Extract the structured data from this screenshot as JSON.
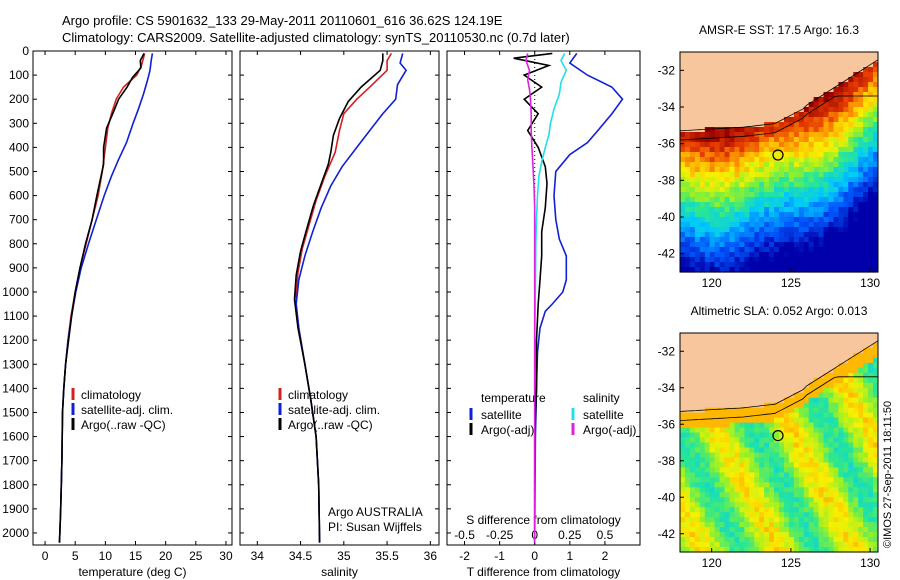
{
  "header": {
    "line1": "Argo profile: CS 5901632_133 29-May-2011 20110601_616 36.62S 124.19E",
    "line2": "Climatology: CARS2009. Satellite-adjusted climatology: synTS_20110530.nc (0.7d later)"
  },
  "colors": {
    "climatology": "#d42020",
    "satellite": "#1020d8",
    "argo": "#000000",
    "sal_satellite": "#20e0e8",
    "sal_argo": "#e020e0",
    "land": "#f8c69c"
  },
  "watermark": "©IMOS 27-Sep-2011 18:11:50",
  "chart_data": [
    {
      "type": "line",
      "name": "temperature",
      "xlabel": "temperature (deg C)",
      "ylabel": "",
      "xlim": [
        -2,
        31
      ],
      "ylim": [
        0,
        2050
      ],
      "xticks": [
        0,
        5,
        10,
        15,
        20,
        25,
        30
      ],
      "yticks": [
        0,
        100,
        200,
        300,
        400,
        500,
        600,
        700,
        800,
        900,
        1000,
        1100,
        1200,
        1300,
        1400,
        1500,
        1600,
        1700,
        1800,
        1900,
        2000
      ],
      "legend": [
        "climatology",
        "satellite-adj. clim.",
        "Argo(..raw -QC)"
      ],
      "series": [
        {
          "name": "climatology",
          "color": "#d42020",
          "points": [
            [
              16.5,
              10
            ],
            [
              16.3,
              30
            ],
            [
              16.0,
              60
            ],
            [
              15.2,
              100
            ],
            [
              13.0,
              150
            ],
            [
              11.8,
              200
            ],
            [
              11.0,
              260
            ],
            [
              10.4,
              320
            ],
            [
              10.0,
              400
            ],
            [
              9.5,
              500
            ],
            [
              8.8,
              600
            ],
            [
              7.8,
              700
            ],
            [
              6.8,
              800
            ],
            [
              5.8,
              900
            ],
            [
              5.0,
              1000
            ],
            [
              4.3,
              1100
            ],
            [
              3.8,
              1200
            ],
            [
              3.4,
              1300
            ],
            [
              3.1,
              1400
            ],
            [
              2.9,
              1500
            ],
            [
              2.8,
              1700
            ],
            [
              2.6,
              1900
            ],
            [
              2.4,
              2040
            ]
          ]
        },
        {
          "name": "satellite-adj. clim.",
          "color": "#1020d8",
          "points": [
            [
              17.8,
              10
            ],
            [
              17.6,
              40
            ],
            [
              17.4,
              80
            ],
            [
              17.0,
              120
            ],
            [
              16.3,
              180
            ],
            [
              15.5,
              240
            ],
            [
              14.6,
              300
            ],
            [
              13.5,
              380
            ],
            [
              12.2,
              450
            ],
            [
              11.0,
              520
            ],
            [
              9.8,
              600
            ],
            [
              8.5,
              700
            ],
            [
              7.2,
              800
            ],
            [
              6.0,
              900
            ],
            [
              5.1,
              1000
            ],
            [
              4.4,
              1100
            ],
            [
              3.8,
              1200
            ],
            [
              3.4,
              1300
            ],
            [
              3.1,
              1400
            ],
            [
              2.9,
              1500
            ],
            [
              2.8,
              1700
            ],
            [
              2.6,
              1900
            ],
            [
              2.4,
              2040
            ]
          ]
        },
        {
          "name": "Argo(..raw -QC)",
          "color": "#000000",
          "points": [
            [
              16.4,
              10
            ],
            [
              15.8,
              40
            ],
            [
              15.9,
              70
            ],
            [
              14.5,
              110
            ],
            [
              13.6,
              150
            ],
            [
              12.2,
              200
            ],
            [
              11.4,
              250
            ],
            [
              10.2,
              320
            ],
            [
              9.7,
              400
            ],
            [
              9.7,
              470
            ],
            [
              9.2,
              530
            ],
            [
              8.6,
              600
            ],
            [
              7.8,
              700
            ],
            [
              6.7,
              800
            ],
            [
              5.8,
              900
            ],
            [
              5.0,
              1000
            ],
            [
              4.4,
              1100
            ],
            [
              3.9,
              1200
            ],
            [
              3.4,
              1300
            ],
            [
              3.1,
              1400
            ],
            [
              2.9,
              1500
            ],
            [
              2.8,
              1700
            ],
            [
              2.6,
              1900
            ],
            [
              2.4,
              2040
            ]
          ]
        }
      ]
    },
    {
      "type": "line",
      "name": "salinity",
      "xlabel": "salinity",
      "ylabel": "",
      "xlim": [
        33.8,
        36.1
      ],
      "ylim": [
        0,
        2050
      ],
      "xticks": [
        34,
        34.5,
        35,
        35.5,
        36
      ],
      "legend": [
        "climatology",
        "satellite-adj. clim.",
        "Argo(..raw -QC)"
      ],
      "annotation": [
        "Argo AUSTRALIA",
        "PI: Susan Wijffels"
      ],
      "series": [
        {
          "name": "climatology",
          "color": "#d42020",
          "points": [
            [
              35.55,
              10
            ],
            [
              35.5,
              40
            ],
            [
              35.5,
              80
            ],
            [
              35.3,
              150
            ],
            [
              35.15,
              200
            ],
            [
              35.0,
              260
            ],
            [
              34.95,
              330
            ],
            [
              34.9,
              420
            ],
            [
              34.78,
              520
            ],
            [
              34.68,
              620
            ],
            [
              34.6,
              720
            ],
            [
              34.52,
              820
            ],
            [
              34.47,
              920
            ],
            [
              34.45,
              1000
            ],
            [
              34.45,
              1060
            ],
            [
              34.48,
              1150
            ],
            [
              34.55,
              1300
            ],
            [
              34.62,
              1450
            ],
            [
              34.68,
              1600
            ],
            [
              34.71,
              1800
            ],
            [
              34.72,
              2040
            ]
          ]
        },
        {
          "name": "satellite-adj. clim.",
          "color": "#1020d8",
          "points": [
            [
              35.68,
              10
            ],
            [
              35.65,
              50
            ],
            [
              35.72,
              80
            ],
            [
              35.62,
              140
            ],
            [
              35.6,
              200
            ],
            [
              35.45,
              260
            ],
            [
              35.3,
              330
            ],
            [
              35.15,
              400
            ],
            [
              34.98,
              480
            ],
            [
              34.85,
              560
            ],
            [
              34.74,
              650
            ],
            [
              34.64,
              750
            ],
            [
              34.55,
              850
            ],
            [
              34.48,
              950
            ],
            [
              34.45,
              1050
            ],
            [
              34.48,
              1150
            ],
            [
              34.55,
              1300
            ],
            [
              34.62,
              1450
            ],
            [
              34.68,
              1600
            ],
            [
              34.71,
              1800
            ],
            [
              34.72,
              2040
            ]
          ]
        },
        {
          "name": "Argo(..raw -QC)",
          "color": "#000000",
          "points": [
            [
              35.45,
              10
            ],
            [
              35.45,
              40
            ],
            [
              35.42,
              80
            ],
            [
              35.2,
              150
            ],
            [
              35.05,
              210
            ],
            [
              34.95,
              280
            ],
            [
              34.88,
              350
            ],
            [
              34.85,
              420
            ],
            [
              34.82,
              470
            ],
            [
              34.75,
              540
            ],
            [
              34.65,
              640
            ],
            [
              34.57,
              740
            ],
            [
              34.5,
              830
            ],
            [
              34.45,
              930
            ],
            [
              34.43,
              1030
            ],
            [
              34.47,
              1150
            ],
            [
              34.55,
              1300
            ],
            [
              34.62,
              1450
            ],
            [
              34.68,
              1600
            ],
            [
              34.71,
              1800
            ],
            [
              34.72,
              2040
            ]
          ]
        }
      ]
    },
    {
      "type": "line",
      "name": "difference",
      "xlabel": "T difference from climatology",
      "x2label": "S difference from climatology",
      "xlim": [
        -2.5,
        3
      ],
      "ylim": [
        0,
        2050
      ],
      "xticks": [
        -2,
        -1,
        0,
        1,
        2
      ],
      "x2ticks": [
        -0.5,
        -0.25,
        0,
        0.25,
        0.5
      ],
      "legend_groups": [
        {
          "title": "temperature",
          "items": [
            "satellite",
            "Argo(-adj)"
          ]
        },
        {
          "title": "salinity",
          "items": [
            "satellite",
            "Argo(-adj)"
          ]
        }
      ],
      "series": [
        {
          "name": "temperature satellite",
          "color": "#1020d8",
          "points": [
            [
              1.2,
              10
            ],
            [
              1.0,
              50
            ],
            [
              1.5,
              100
            ],
            [
              2.2,
              150
            ],
            [
              2.5,
              200
            ],
            [
              2.2,
              260
            ],
            [
              1.8,
              330
            ],
            [
              1.5,
              380
            ],
            [
              1.0,
              430
            ],
            [
              0.6,
              500
            ],
            [
              0.55,
              600
            ],
            [
              0.6,
              700
            ],
            [
              0.7,
              780
            ],
            [
              0.9,
              850
            ],
            [
              0.9,
              900
            ],
            [
              0.9,
              950
            ],
            [
              0.8,
              1000
            ],
            [
              0.5,
              1050
            ],
            [
              0.3,
              1080
            ],
            [
              0.15,
              1150
            ],
            [
              0.08,
              1250
            ],
            [
              0.05,
              1400
            ],
            [
              0.02,
              1600
            ],
            [
              0.0,
              2040
            ]
          ]
        },
        {
          "name": "temperature Argo(-adj)",
          "color": "#000000",
          "points": [
            [
              0.5,
              10
            ],
            [
              -0.6,
              30
            ],
            [
              0.4,
              60
            ],
            [
              -0.3,
              100
            ],
            [
              0.2,
              150
            ],
            [
              -0.3,
              200
            ],
            [
              0.1,
              260
            ],
            [
              -0.2,
              330
            ],
            [
              0.1,
              400
            ],
            [
              0.3,
              480
            ],
            [
              0.35,
              550
            ],
            [
              0.3,
              650
            ],
            [
              0.2,
              750
            ],
            [
              0.2,
              850
            ],
            [
              0.15,
              950
            ],
            [
              0.1,
              1050
            ],
            [
              0.05,
              1200
            ],
            [
              0.05,
              1400
            ],
            [
              0.0,
              1600
            ],
            [
              0.0,
              2040
            ]
          ]
        },
        {
          "name": "salinity satellite",
          "color": "#20e0e8",
          "points": [
            [
              0.85,
              10
            ],
            [
              0.75,
              40
            ],
            [
              0.9,
              80
            ],
            [
              0.75,
              130
            ],
            [
              0.7,
              180
            ],
            [
              0.55,
              240
            ],
            [
              0.45,
              300
            ],
            [
              0.4,
              350
            ],
            [
              0.3,
              400
            ],
            [
              0.2,
              460
            ],
            [
              0.12,
              520
            ],
            [
              0.08,
              600
            ],
            [
              0.05,
              700
            ],
            [
              0.03,
              800
            ],
            [
              0.02,
              1000
            ],
            [
              0.0,
              1200
            ],
            [
              0.0,
              2040
            ]
          ]
        },
        {
          "name": "salinity Argo(-adj)",
          "color": "#e020e0",
          "points": [
            [
              -0.2,
              10
            ],
            [
              -0.25,
              40
            ],
            [
              -0.15,
              80
            ],
            [
              -0.2,
              120
            ],
            [
              -0.15,
              160
            ],
            [
              -0.12,
              200
            ],
            [
              -0.1,
              260
            ],
            [
              -0.1,
              330
            ],
            [
              -0.08,
              400
            ],
            [
              -0.05,
              480
            ],
            [
              -0.02,
              560
            ],
            [
              0.0,
              650
            ],
            [
              0.0,
              800
            ],
            [
              0.0,
              1000
            ],
            [
              0.0,
              1200
            ],
            [
              0.0,
              2040
            ]
          ]
        }
      ]
    },
    {
      "type": "heatmap",
      "name": "sst_map",
      "title": "AMSR-E SST: 17.5 Argo: 16.3",
      "xlim": [
        118,
        130.5
      ],
      "ylim": [
        -43,
        -31
      ],
      "xticks": [
        120,
        125,
        130
      ],
      "yticks": [
        -32,
        -34,
        -36,
        -38,
        -40,
        -42
      ],
      "argo_position": [
        124.19,
        -36.62
      ]
    },
    {
      "type": "heatmap",
      "name": "sla_map",
      "title": "Altimetric SLA: 0.052 Argo: 0.013",
      "xlim": [
        118,
        130.5
      ],
      "ylim": [
        -43,
        -31
      ],
      "xticks": [
        120,
        125,
        130
      ],
      "yticks": [
        -32,
        -34,
        -36,
        -38,
        -40,
        -42
      ],
      "argo_position": [
        124.19,
        -36.62
      ]
    }
  ]
}
